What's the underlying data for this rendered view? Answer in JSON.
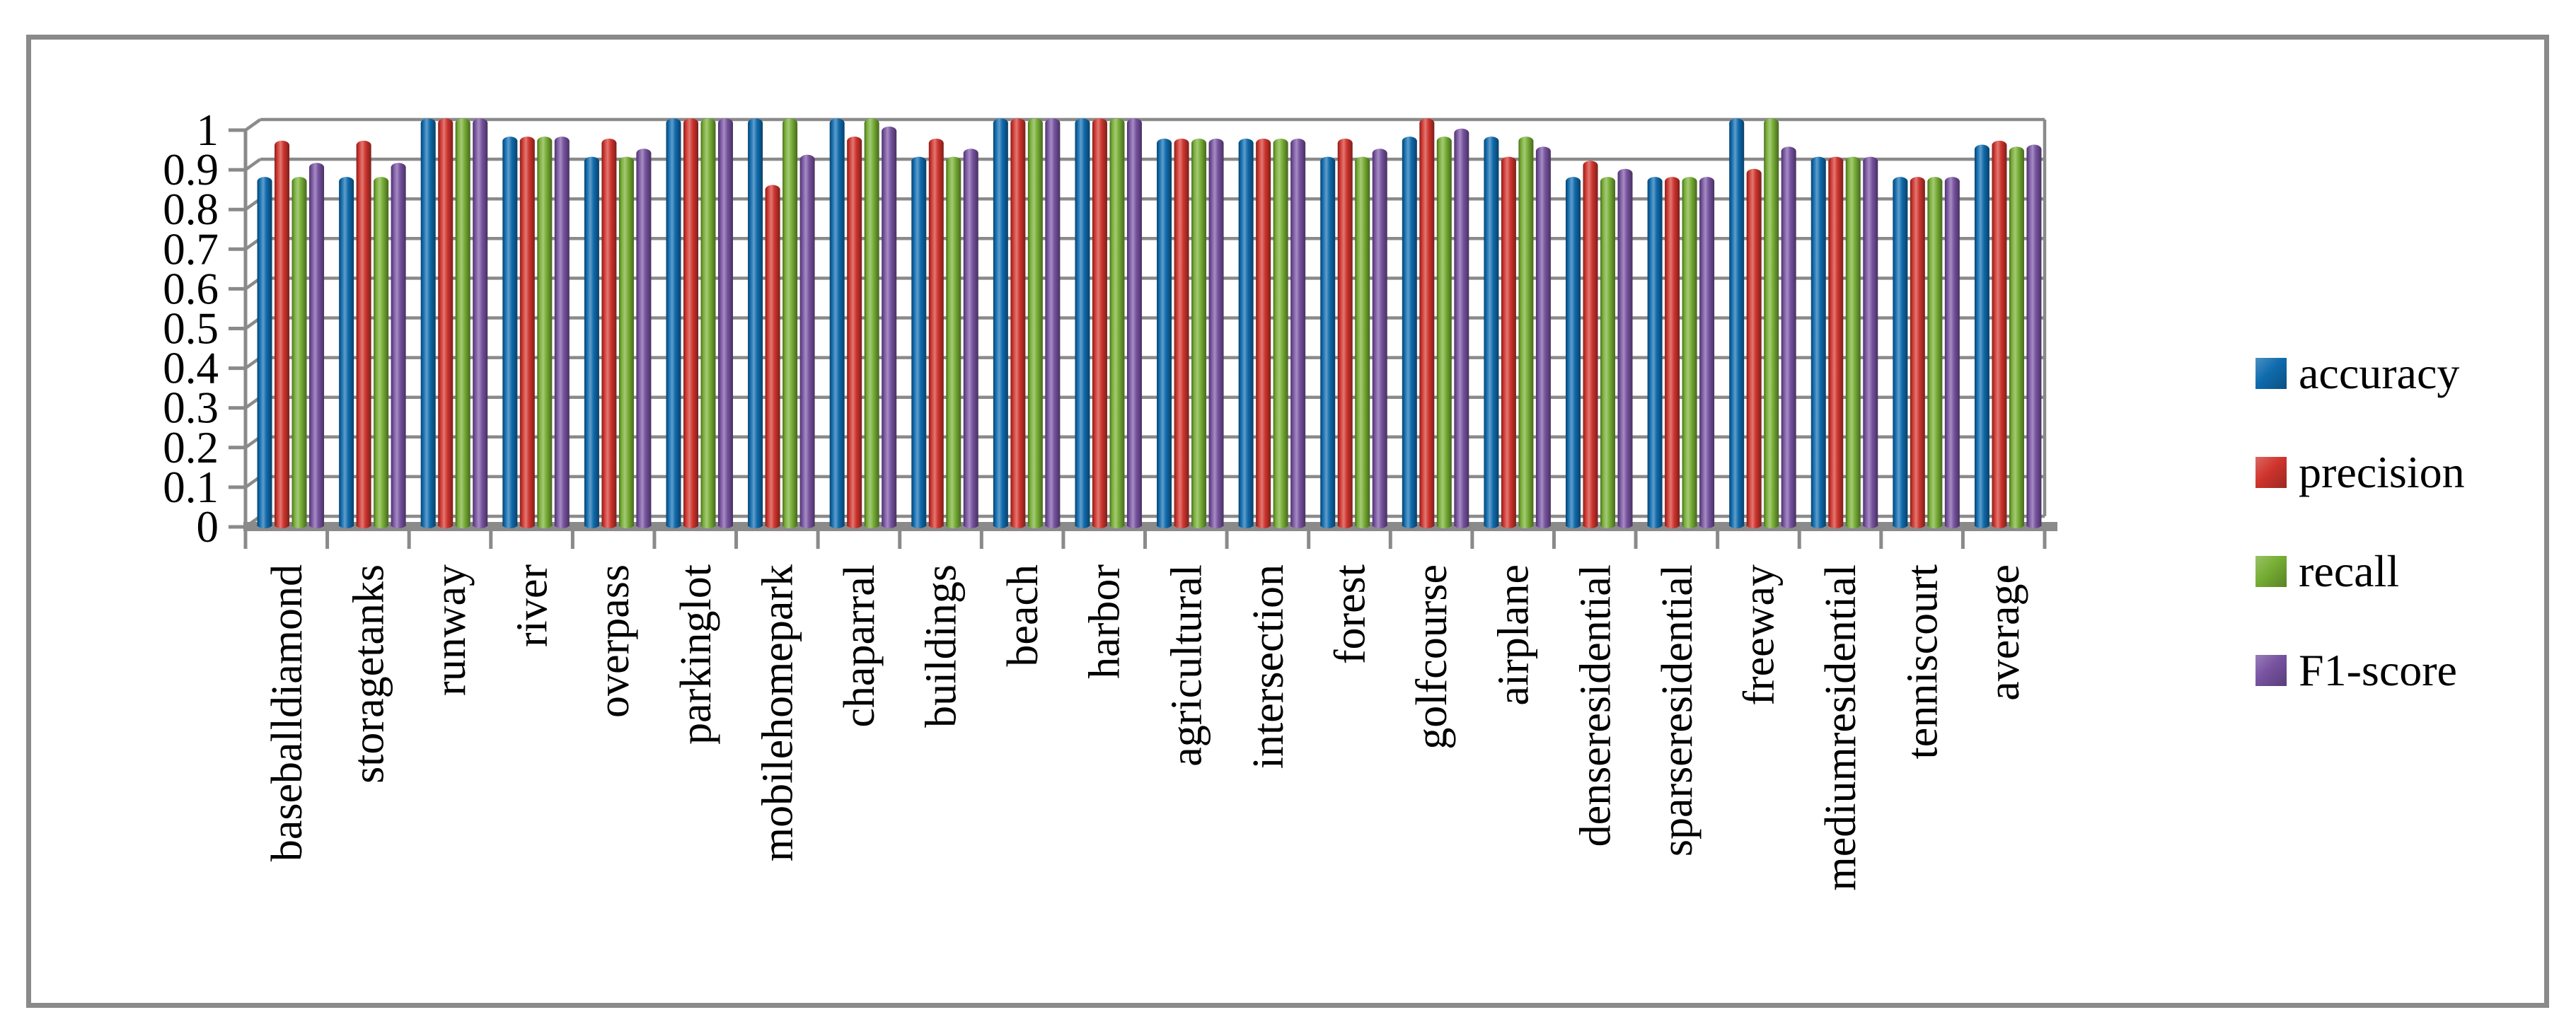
{
  "figure": {
    "background": "#ffffff",
    "frame_color": "#8a8a8a",
    "gridline_color": "#8a8a8a",
    "text_color": "#000000"
  },
  "chart_data": {
    "type": "bar",
    "style": "3d-cylinder-clustered",
    "title": "",
    "xlabel": "",
    "ylabel": "",
    "ylim": [
      0,
      1
    ],
    "ytick_step": 0.1,
    "ytick_labels": [
      "0",
      "0.1",
      "0.2",
      "0.3",
      "0.4",
      "0.5",
      "0.6",
      "0.7",
      "0.8",
      "0.9",
      "1"
    ],
    "grid": "horizontal",
    "legend_position": "right",
    "categories": [
      "baseballdiamond",
      "storagetanks",
      "runway",
      "river",
      "overpass",
      "parkinglot",
      "mobilehomepark",
      "chaparral",
      "buildings",
      "beach",
      "harbor",
      "agricultural",
      "intersection",
      "forest",
      "golfcourse",
      "airplane",
      "denseresidential",
      "sparseresidential",
      "freeway",
      "mediumresidential",
      "tenniscourt",
      "average"
    ],
    "series": [
      {
        "name": "accuracy",
        "color": "#0f6bad",
        "values": [
          0.855,
          0.855,
          1,
          0.955,
          0.905,
          1,
          1,
          1,
          0.905,
          1,
          1,
          0.95,
          0.95,
          0.905,
          0.955,
          0.955,
          0.855,
          0.855,
          1,
          0.905,
          0.855,
          0.935
        ]
      },
      {
        "name": "precision",
        "color": "#cf342d",
        "values": [
          0.945,
          0.945,
          1,
          0.955,
          0.95,
          1,
          0.835,
          0.955,
          0.95,
          1,
          1,
          0.95,
          0.95,
          0.95,
          1,
          0.905,
          0.895,
          0.855,
          0.875,
          0.905,
          0.855,
          0.945
        ]
      },
      {
        "name": "recall",
        "color": "#76ad34",
        "values": [
          0.855,
          0.855,
          1,
          0.955,
          0.905,
          1,
          1,
          1,
          0.905,
          1,
          1,
          0.95,
          0.95,
          0.905,
          0.955,
          0.955,
          0.855,
          0.855,
          1,
          0.905,
          0.855,
          0.93
        ]
      },
      {
        "name": "F1-score",
        "color": "#7752a0",
        "values": [
          0.89,
          0.89,
          1,
          0.955,
          0.925,
          1,
          0.91,
          0.98,
          0.925,
          1,
          1,
          0.95,
          0.95,
          0.925,
          0.975,
          0.93,
          0.875,
          0.855,
          0.93,
          0.905,
          0.855,
          0.935
        ]
      }
    ]
  }
}
